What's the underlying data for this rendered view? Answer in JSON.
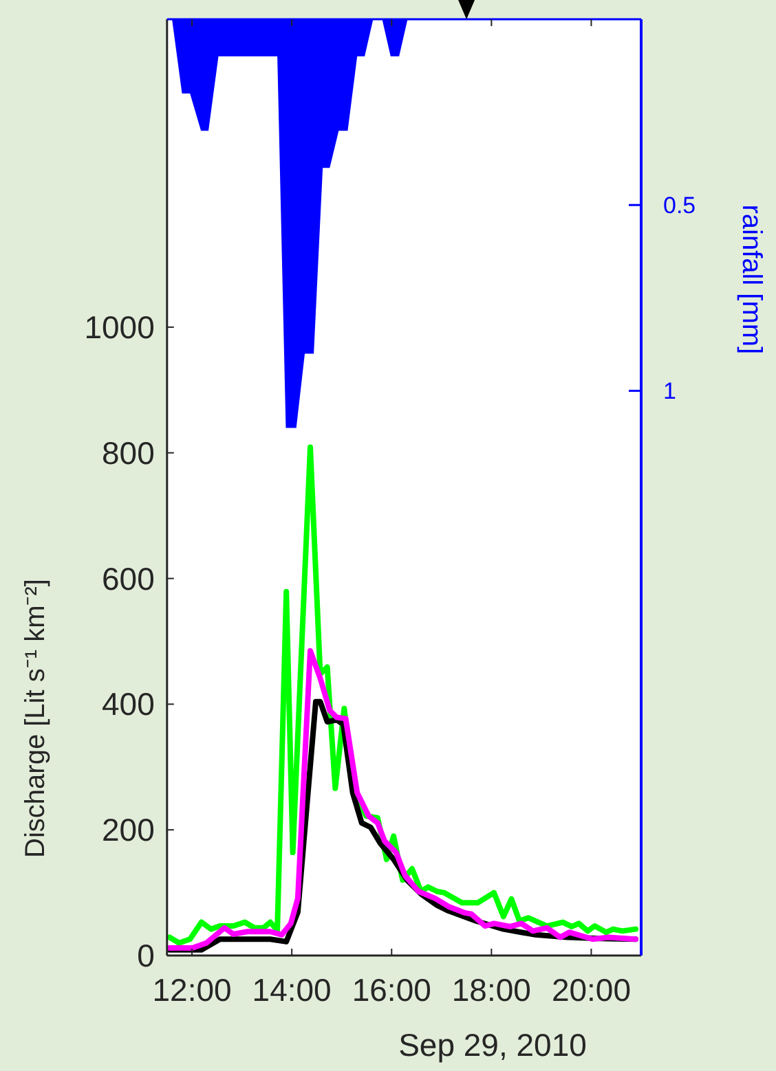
{
  "chart_data": {
    "type": "line",
    "xlabel": "Sep 29, 2010",
    "ylabel": "Discharge [Lit s⁻¹ km⁻²]",
    "y2label": "rainfall [mm]",
    "xlim": [
      11.5,
      21
    ],
    "xticks": [
      {
        "value": 12,
        "label": "12:00"
      },
      {
        "value": 14,
        "label": "14:00"
      },
      {
        "value": 16,
        "label": "16:00"
      },
      {
        "value": 18,
        "label": "18:00"
      },
      {
        "value": 20,
        "label": "20:00"
      }
    ],
    "ylim": [
      0,
      1490
    ],
    "yticks": [
      0,
      200,
      400,
      600,
      800,
      1000
    ],
    "y2lim": [
      2.52,
      0
    ],
    "y2ticks": [
      0.5,
      1
    ],
    "grid": false,
    "marker": "none",
    "line_style": "solid",
    "series": [
      {
        "type": "area",
        "axis": "y2",
        "color": "#0000ff",
        "x": [
          11.5,
          11.6,
          11.8,
          11.96,
          12.18,
          12.33,
          12.53,
          13.71,
          13.88,
          14.09,
          14.26,
          14.44,
          14.62,
          14.76,
          14.94,
          15.12,
          15.31,
          15.46,
          15.63,
          15.81,
          15.98,
          16.15,
          16.32,
          21
        ],
        "values": [
          0,
          0,
          0.2,
          0.2,
          0.3,
          0.3,
          0.1,
          0.1,
          1.1,
          1.1,
          0.9,
          0.9,
          0.4,
          0.4,
          0.3,
          0.3,
          0.1,
          0.1,
          0,
          0,
          0.1,
          0.1,
          0,
          0
        ]
      },
      {
        "color": "#00ff00",
        "x": [
          11.55,
          11.74,
          11.96,
          12.19,
          12.38,
          12.56,
          12.83,
          13.06,
          13.25,
          13.43,
          13.57,
          13.71,
          13.89,
          14.02,
          14.37,
          14.57,
          14.71,
          14.87,
          15.05,
          15.22,
          15.49,
          15.72,
          15.9,
          16.04,
          16.22,
          16.41,
          16.59,
          16.73,
          16.91,
          17.05,
          17.41,
          17.73,
          18.05,
          18.24,
          18.4,
          18.56,
          18.74,
          19.11,
          19.43,
          19.61,
          19.75,
          19.93,
          20.07,
          20.3,
          20.44,
          20.62,
          20.89
        ],
        "values": [
          29,
          20,
          26,
          53,
          42,
          47,
          47,
          53,
          44,
          44,
          53,
          40,
          579,
          164,
          809,
          448,
          459,
          266,
          393,
          267,
          222,
          219,
          153,
          190,
          120,
          138,
          102,
          109,
          102,
          100,
          84,
          84,
          100,
          62,
          90,
          55,
          60,
          47,
          53,
          46,
          51,
          39,
          47,
          37,
          42,
          39,
          42
        ]
      },
      {
        "color": "#000000",
        "x": [
          11.55,
          12.19,
          12.56,
          13.57,
          13.89,
          14.12,
          14.48,
          14.57,
          14.71,
          14.9,
          15.03,
          15.22,
          15.4,
          15.58,
          15.77,
          16.04,
          16.31,
          16.59,
          16.91,
          17.14,
          17.69,
          18.24,
          18.88,
          19.52,
          20.16,
          20.89
        ],
        "values": [
          9,
          9,
          26,
          26,
          22,
          69,
          404,
          404,
          372,
          375,
          368,
          259,
          211,
          204,
          179,
          153,
          120,
          98,
          80,
          71,
          55,
          42,
          33,
          29,
          27,
          26
        ]
      },
      {
        "color": "#ff00ff",
        "x": [
          11.55,
          12.01,
          12.29,
          12.65,
          12.83,
          13.11,
          13.57,
          13.8,
          13.98,
          14.12,
          14.37,
          14.57,
          14.76,
          14.9,
          15.08,
          15.31,
          15.54,
          15.72,
          15.86,
          16.09,
          16.27,
          16.54,
          16.87,
          17.14,
          17.46,
          17.6,
          17.87,
          18.05,
          18.38,
          18.6,
          18.83,
          19.11,
          19.38,
          19.56,
          20.03,
          20.34,
          20.89
        ],
        "values": [
          12,
          12,
          20,
          44,
          34,
          38,
          38,
          33,
          51,
          91,
          485,
          441,
          390,
          379,
          377,
          259,
          222,
          211,
          182,
          164,
          127,
          102,
          91,
          78,
          68,
          66,
          47,
          51,
          46,
          51,
          39,
          44,
          29,
          37,
          26,
          29,
          26
        ]
      }
    ]
  }
}
